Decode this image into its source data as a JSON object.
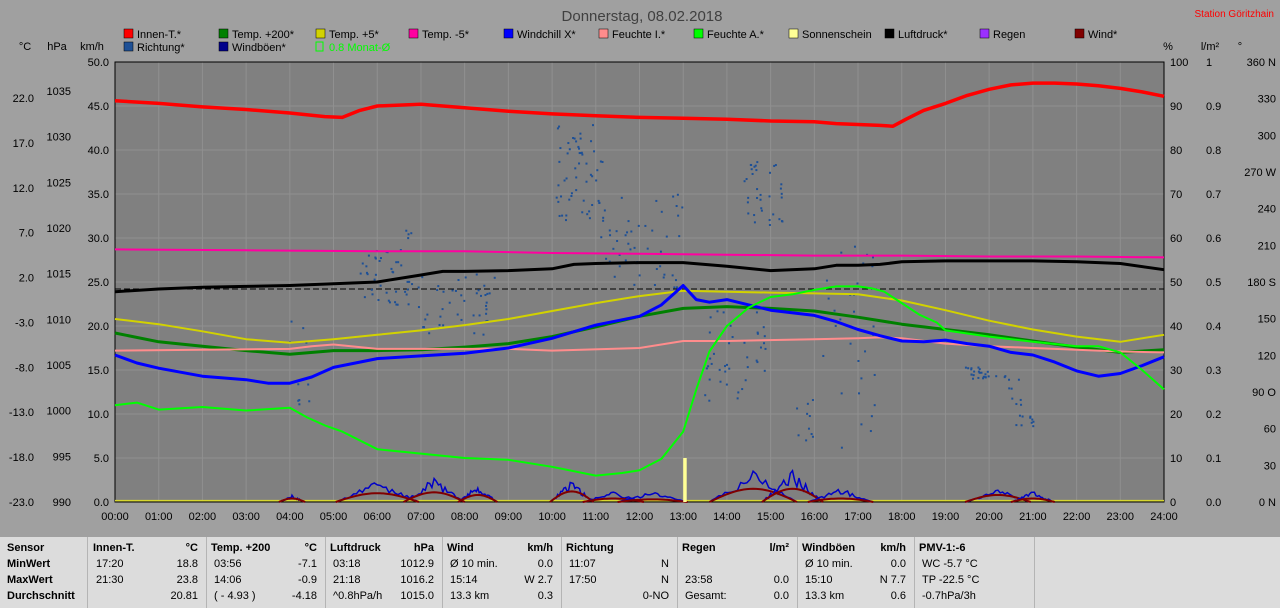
{
  "station": "Station Göritzhain",
  "chart_data": {
    "type": "line",
    "title": "Donnerstag, 08.02.2018",
    "x_ticks": [
      "00:00",
      "01:00",
      "02:00",
      "03:00",
      "04:00",
      "05:00",
      "06:00",
      "07:00",
      "08:00",
      "09:00",
      "10:00",
      "11:00",
      "12:00",
      "13:00",
      "14:00",
      "15:00",
      "16:00",
      "17:00",
      "18:00",
      "19:00",
      "20:00",
      "21:00",
      "22:00",
      "23:00",
      "24:00"
    ],
    "xlim": [
      0,
      24
    ],
    "grid": true,
    "axes": {
      "left_c": {
        "unit": "°C",
        "ticks": [
          "22.0",
          "17.0",
          "12.0",
          "7.0",
          "2.0",
          "-3.0",
          "-8.0",
          "-13.0",
          "-18.0",
          "-23.0"
        ]
      },
      "left_hpa": {
        "unit": "hPa",
        "ticks": [
          "1035",
          "1030",
          "1025",
          "1020",
          "1015",
          "1010",
          "1005",
          "1000",
          "995",
          "990"
        ]
      },
      "left_kmh": {
        "unit": "km/h",
        "range": [
          0,
          50
        ],
        "ticks": [
          "50.0",
          "45.0",
          "40.0",
          "35.0",
          "30.0",
          "25.0",
          "20.0",
          "15.0",
          "10.0",
          "5.0",
          "0.0"
        ]
      },
      "right_pct": {
        "unit": "%",
        "ticks": [
          "100",
          "90",
          "80",
          "70",
          "60",
          "50",
          "40",
          "30",
          "20",
          "10",
          "0"
        ]
      },
      "right_lm2": {
        "unit": "l/m²",
        "ticks": [
          "1",
          "0.9",
          "0.8",
          "0.7",
          "0.6",
          "0.5",
          "0.4",
          "0.3",
          "0.2",
          "0.1",
          "0.0"
        ]
      },
      "right_deg": {
        "unit": "°",
        "ticks": [
          "360 N",
          "330",
          "300",
          "270 W",
          "240",
          "210",
          "180 S",
          "150",
          "120",
          "90 O",
          "60",
          "30",
          "0 N"
        ]
      }
    },
    "legend": [
      {
        "name": "Innen-T.*",
        "color": "#ff0000"
      },
      {
        "name": "Temp. +200*",
        "color": "#008000"
      },
      {
        "name": "Temp. +5*",
        "color": "#d2d200"
      },
      {
        "name": "Temp. -5*",
        "color": "#ff00a0"
      },
      {
        "name": "Windchill X*",
        "color": "#0000ff"
      },
      {
        "name": "Feuchte I.*",
        "color": "#ff8c8c"
      },
      {
        "name": "Feuchte A.*",
        "color": "#00ff00"
      },
      {
        "name": "Sonnenschein",
        "color": "#ffff96"
      },
      {
        "name": "Luftdruck*",
        "color": "#000000"
      },
      {
        "name": "Regen",
        "color": "#9b30ff"
      },
      {
        "name": "Wind*",
        "color": "#800000"
      },
      {
        "name": "Richtung*",
        "color": "#1e5096"
      },
      {
        "name": "Windböen*",
        "color": "#00008b"
      },
      {
        "name": "0.8 Monat-Ø",
        "color": "#00ff00"
      }
    ],
    "series": [
      {
        "name": "Innen-T.*",
        "color": "#ff0000",
        "width": 3.5,
        "x": [
          0,
          1,
          2,
          3,
          4,
          4.8,
          5.2,
          5.6,
          6,
          7,
          8,
          9,
          10,
          11,
          12,
          13,
          14,
          15,
          16,
          16.5,
          17,
          17.5,
          17.8,
          18.1,
          18.5,
          19,
          19.5,
          20,
          20.5,
          21,
          21.5,
          22,
          22.5,
          23,
          23.5,
          24
        ],
        "y": [
          45.6,
          45.3,
          44.9,
          44.6,
          44.2,
          43.8,
          43.7,
          44.5,
          45.0,
          45.2,
          44.8,
          44.4,
          44.1,
          43.9,
          43.7,
          43.6,
          43.5,
          43.3,
          43.2,
          43.0,
          42.9,
          42.8,
          42.7,
          43.5,
          44.5,
          45.3,
          46.2,
          46.9,
          47.4,
          47.6,
          47.6,
          47.5,
          47.3,
          47.0,
          46.6,
          46.1
        ]
      },
      {
        "name": "Temp. -5*",
        "color": "#ff00a0",
        "width": 2,
        "x": [
          0,
          3,
          6,
          8,
          10,
          12,
          14,
          16,
          18,
          20,
          22,
          24
        ],
        "y": [
          28.7,
          28.6,
          28.5,
          28.5,
          28.3,
          28.2,
          28.1,
          28.0,
          28.0,
          27.9,
          27.9,
          27.8
        ]
      },
      {
        "name": "Luftdruck*",
        "color": "#000000",
        "width": 3,
        "x": [
          0,
          1,
          2,
          3,
          4,
          5,
          6,
          7,
          7.5,
          8,
          9,
          10,
          10.5,
          11,
          12,
          13,
          14,
          15,
          16,
          16.5,
          17,
          17.5,
          18,
          19,
          20,
          21,
          22,
          23,
          24
        ],
        "y": [
          23.9,
          24.2,
          24.4,
          24.5,
          24.6,
          24.8,
          25.0,
          25.8,
          26.2,
          26.2,
          26.3,
          26.5,
          27.0,
          27.1,
          27.2,
          27.2,
          26.8,
          26.3,
          26.5,
          26.9,
          26.9,
          27.0,
          27.3,
          27.4,
          27.4,
          27.4,
          27.3,
          27.1,
          26.4
        ]
      },
      {
        "name": "Temp. +5*",
        "color": "#d2d200",
        "width": 2,
        "x": [
          0,
          1,
          2,
          3,
          4,
          5,
          6,
          7,
          8,
          9,
          10,
          11,
          12,
          13,
          14,
          15,
          16,
          17,
          18,
          19,
          20,
          21,
          22,
          23,
          24
        ],
        "y": [
          20.8,
          20.2,
          19.4,
          18.5,
          18.1,
          18.5,
          19.0,
          19.5,
          20.1,
          20.8,
          21.7,
          22.6,
          23.4,
          24.0,
          23.9,
          23.8,
          23.7,
          23.6,
          22.9,
          21.8,
          20.6,
          19.6,
          18.8,
          18.2,
          19.0
        ]
      },
      {
        "name": "Temp. +200*",
        "color": "#008000",
        "width": 3,
        "x": [
          0,
          1,
          2,
          3,
          4,
          5,
          6,
          7,
          8,
          9,
          10,
          11,
          12,
          13,
          14,
          15,
          16,
          17,
          18,
          19,
          20,
          21,
          22,
          23,
          24
        ],
        "y": [
          19.2,
          18.2,
          17.7,
          17.2,
          16.8,
          17.2,
          17.2,
          17.3,
          17.6,
          18.0,
          18.8,
          19.9,
          21.1,
          22.0,
          22.2,
          22.0,
          21.7,
          21.0,
          20.2,
          19.6,
          19.0,
          18.3,
          17.6,
          17.0,
          17.3
        ]
      },
      {
        "name": "Feuchte I.*",
        "color": "#ff8c8c",
        "width": 2,
        "x": [
          0,
          2,
          4,
          4.5,
          5,
          6,
          7,
          9,
          10,
          12,
          13,
          14,
          16,
          17,
          17.5,
          18,
          19,
          20,
          21,
          22,
          23,
          24
        ],
        "y": [
          17.2,
          17.3,
          17.4,
          17.7,
          17.9,
          17.4,
          17.4,
          17.4,
          17.2,
          17.5,
          18.3,
          18.3,
          18.5,
          18.6,
          18.7,
          18.6,
          18.0,
          17.7,
          17.5,
          17.3,
          17.1,
          17.0
        ]
      },
      {
        "name": "Windchill X*",
        "color": "#0000ff",
        "width": 3,
        "x": [
          0,
          0.5,
          1,
          2,
          3,
          3.5,
          4,
          4.5,
          5,
          6,
          7,
          8,
          9,
          10,
          11,
          11.5,
          12,
          12.5,
          13,
          13.3,
          13.6,
          14,
          15,
          16,
          16.5,
          17,
          17.5,
          18,
          18.5,
          19,
          19.5,
          20,
          20.5,
          21,
          21.5,
          22,
          22.5,
          23,
          23.5,
          24
        ],
        "y": [
          16.7,
          15.8,
          15.2,
          14.3,
          13.9,
          13.5,
          13.5,
          14.2,
          15.3,
          16.3,
          16.6,
          16.9,
          17.5,
          18.6,
          20.1,
          20.6,
          21.1,
          22.4,
          24.6,
          23.0,
          22.7,
          23.0,
          21.8,
          21.2,
          20.5,
          19.6,
          18.9,
          18.3,
          18.2,
          18.4,
          18.0,
          17.7,
          17.0,
          16.7,
          15.9,
          14.9,
          14.3,
          14.6,
          15.5,
          16.5
        ]
      },
      {
        "name": "Feuchte A.*",
        "color": "#00ff00",
        "width": 2,
        "x": [
          0,
          0.5,
          1,
          2,
          3,
          4,
          4.4,
          4.8,
          5.2,
          6,
          7,
          8,
          9,
          10,
          11,
          11.6,
          12,
          12.5,
          13,
          13.3,
          13.6,
          14,
          14.5,
          15,
          15.5,
          16,
          16.5,
          17,
          17.3,
          17.6,
          18,
          18.4,
          18.8,
          19,
          20,
          21,
          22,
          22.5,
          23,
          23.5,
          24
        ],
        "y": [
          11.0,
          11.3,
          10.5,
          10.8,
          10.4,
          10.7,
          9.6,
          8.7,
          8.0,
          6.0,
          5.5,
          5.0,
          4.8,
          4.0,
          3.0,
          3.3,
          3.6,
          4.9,
          8.0,
          12.8,
          17.1,
          20.0,
          22.1,
          23.3,
          23.6,
          24.1,
          24.5,
          24.5,
          24.3,
          23.9,
          22.6,
          21.3,
          20.4,
          19.5,
          18.8,
          18.2,
          17.7,
          17.7,
          17.0,
          15.0,
          12.8
        ]
      }
    ],
    "reference_line": {
      "name": "0.8 Monat-Ø",
      "y": 24.2
    },
    "sunshine_bar": {
      "x": [
        13.0,
        13.08
      ],
      "y": 5.0
    },
    "rain_line": {
      "y": 0.15
    },
    "wind_bursts": [
      {
        "center": 4.05,
        "span": 0.6,
        "gust": 0.8,
        "wind": 0.4
      },
      {
        "center": 6.0,
        "span": 1.9,
        "gust": 2.5,
        "wind": 1.0
      },
      {
        "center": 7.3,
        "span": 1.4,
        "gust": 2.8,
        "wind": 1.1
      },
      {
        "center": 8.3,
        "span": 0.9,
        "gust": 2.0,
        "wind": 0.8
      },
      {
        "center": 10.45,
        "span": 1.0,
        "gust": 2.5,
        "wind": 1.2
      },
      {
        "center": 11.4,
        "span": 1.4,
        "gust": 1.2,
        "wind": 0.4
      },
      {
        "center": 12.3,
        "span": 1.6,
        "gust": 1.2,
        "wind": 0.3
      },
      {
        "center": 14.6,
        "span": 2.0,
        "gust": 3.5,
        "wind": 1.5
      },
      {
        "center": 15.5,
        "span": 1.4,
        "gust": 3.6,
        "wind": 1.5
      },
      {
        "center": 16.6,
        "span": 1.5,
        "gust": 1.6,
        "wind": 0.4
      },
      {
        "center": 20.2,
        "span": 1.5,
        "gust": 1.5,
        "wind": 0.8
      },
      {
        "center": 21.0,
        "span": 1.0,
        "gust": 1.2,
        "wind": 0.4
      }
    ],
    "direction_clusters": [
      {
        "x0": 4.0,
        "x1": 4.4,
        "ylo": 18,
        "yhi": 21,
        "n": 4
      },
      {
        "x0": 4.1,
        "x1": 4.45,
        "ylo": 11,
        "yhi": 14,
        "n": 6
      },
      {
        "x0": 5.6,
        "x1": 6.8,
        "ylo": 22,
        "yhi": 31,
        "n": 45
      },
      {
        "x0": 6.9,
        "x1": 8.7,
        "ylo": 19,
        "yhi": 26,
        "n": 45
      },
      {
        "x0": 10.1,
        "x1": 11.2,
        "ylo": 32,
        "yhi": 43,
        "n": 55
      },
      {
        "x0": 11.1,
        "x1": 13.0,
        "ylo": 24,
        "yhi": 35,
        "n": 50
      },
      {
        "x0": 13.5,
        "x1": 14.9,
        "ylo": 11,
        "yhi": 22,
        "n": 40
      },
      {
        "x0": 14.4,
        "x1": 15.3,
        "ylo": 30,
        "yhi": 39,
        "n": 35
      },
      {
        "x0": 15.6,
        "x1": 16.0,
        "ylo": 6,
        "yhi": 12,
        "n": 10
      },
      {
        "x0": 16.2,
        "x1": 17.4,
        "ylo": 6,
        "yhi": 30,
        "n": 30
      },
      {
        "x0": 19.4,
        "x1": 20.4,
        "ylo": 14,
        "yhi": 15.4,
        "n": 25
      },
      {
        "x0": 20.4,
        "x1": 20.8,
        "ylo": 11,
        "yhi": 15,
        "n": 8
      },
      {
        "x0": 20.6,
        "x1": 21.1,
        "ylo": 8.5,
        "yhi": 10,
        "n": 10
      }
    ]
  },
  "stats": {
    "row_labels": [
      "Sensor",
      "MinWert",
      "MaxWert",
      "Durchschnitt"
    ],
    "blocks": [
      {
        "title": "Innen-T.",
        "unit": "°C",
        "rows": [
          [
            "17:20",
            "18.8"
          ],
          [
            "21:30",
            "23.8"
          ],
          [
            "",
            "20.81"
          ]
        ]
      },
      {
        "title": "Temp. +200",
        "unit": "°C",
        "rows": [
          [
            "03:56",
            "-7.1"
          ],
          [
            "14:06",
            "-0.9"
          ],
          [
            "( - 4.93 )",
            "-4.18"
          ]
        ]
      },
      {
        "title": "Luftdruck",
        "unit": "hPa",
        "rows": [
          [
            "03:18",
            "1012.9"
          ],
          [
            "21:18",
            "1016.2"
          ],
          [
            "^0.8hPa/h",
            "1015.0"
          ]
        ]
      },
      {
        "title": "Wind",
        "unit": "km/h",
        "rows": [
          [
            "Ø 10 min.",
            "0.0"
          ],
          [
            "15:14",
            "W 2.7"
          ],
          [
            "13.3 km",
            "0.3"
          ]
        ]
      },
      {
        "title": "Richtung",
        "unit": "",
        "rows": [
          [
            "11:07",
            "N"
          ],
          [
            "17:50",
            "N"
          ],
          [
            "",
            "0-NO"
          ]
        ]
      },
      {
        "title": "Regen",
        "unit": "l/m²",
        "rows": [
          [
            "",
            ""
          ],
          [
            "23:58",
            "0.0"
          ],
          [
            "Gesamt:",
            "0.0"
          ]
        ]
      },
      {
        "title": "Windböen",
        "unit": "km/h",
        "rows": [
          [
            "Ø 10 min.",
            "0.0"
          ],
          [
            "15:10",
            "N 7.7"
          ],
          [
            "13.3 km",
            "0.6"
          ]
        ]
      },
      {
        "title": "PMV-1:-6",
        "unit": "",
        "rows": [
          [
            "WC -5.7 °C",
            ""
          ],
          [
            "TP -22.5 °C",
            ""
          ],
          [
            "-0.7hPa/3h",
            ""
          ]
        ]
      }
    ]
  }
}
